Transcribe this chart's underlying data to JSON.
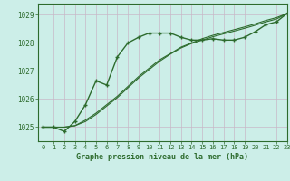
{
  "title": "Graphe pression niveau de la mer (hPa)",
  "bg_color": "#cceee8",
  "grid_color": "#c8b8c8",
  "line_color": "#2d6b2d",
  "xlim": [
    -0.5,
    23
  ],
  "ylim": [
    1024.5,
    1029.4
  ],
  "yticks": [
    1025,
    1026,
    1027,
    1028,
    1029
  ],
  "xticks": [
    0,
    1,
    2,
    3,
    4,
    5,
    6,
    7,
    8,
    9,
    10,
    11,
    12,
    13,
    14,
    15,
    16,
    17,
    18,
    19,
    20,
    21,
    22,
    23
  ],
  "series1": [
    1025.0,
    1025.0,
    1024.85,
    1025.2,
    1025.8,
    1026.65,
    1026.5,
    1027.5,
    1028.0,
    1028.2,
    1028.35,
    1028.35,
    1028.35,
    1028.2,
    1028.1,
    1028.1,
    1028.15,
    1028.1,
    1028.1,
    1028.2,
    1028.4,
    1028.65,
    1028.75,
    1029.05
  ],
  "series2": [
    1025.0,
    1025.0,
    1025.0,
    1025.05,
    1025.2,
    1025.45,
    1025.75,
    1026.05,
    1026.4,
    1026.75,
    1027.05,
    1027.35,
    1027.6,
    1027.82,
    1027.98,
    1028.1,
    1028.22,
    1028.32,
    1028.42,
    1028.52,
    1028.63,
    1028.75,
    1028.85,
    1029.05
  ],
  "series3": [
    1025.0,
    1025.0,
    1025.0,
    1025.05,
    1025.25,
    1025.5,
    1025.8,
    1026.1,
    1026.45,
    1026.8,
    1027.1,
    1027.4,
    1027.62,
    1027.85,
    1028.0,
    1028.15,
    1028.27,
    1028.37,
    1028.47,
    1028.57,
    1028.68,
    1028.8,
    1028.9,
    1029.05
  ]
}
